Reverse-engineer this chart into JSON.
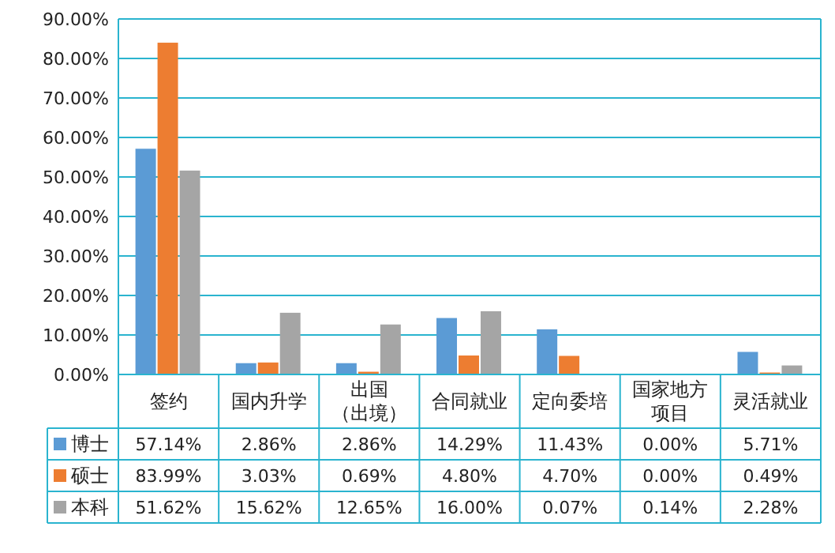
{
  "chart_data": {
    "type": "bar",
    "categories": [
      "签约",
      "国内升学",
      "出国（出境）",
      "合同就业",
      "定向委培",
      "国家地方项目",
      "灵活就业"
    ],
    "series": [
      {
        "name": "博士",
        "color": "#5b9bd5",
        "values": [
          57.14,
          2.86,
          2.86,
          14.29,
          11.43,
          0,
          5.71
        ],
        "value_labels": [
          "57.14%",
          "2.86%",
          "2.86%",
          "14.29%",
          "11.43%",
          "0.00%",
          "5.71%"
        ]
      },
      {
        "name": "硕士",
        "color": "#ed7d31",
        "values": [
          83.99,
          3.03,
          0.69,
          4.8,
          4.7,
          0,
          0.49
        ],
        "value_labels": [
          "83.99%",
          "3.03%",
          "0.69%",
          "4.80%",
          "4.70%",
          "0.00%",
          "0.49%"
        ]
      },
      {
        "name": "本科",
        "color": "#a5a5a5",
        "values": [
          51.62,
          15.62,
          12.65,
          16,
          0.07,
          0.14,
          2.28
        ],
        "value_labels": [
          "51.62%",
          "15.62%",
          "12.65%",
          "16.00%",
          "0.07%",
          "0.14%",
          "2.28%"
        ]
      }
    ],
    "ylim": [
      0,
      90
    ],
    "yticks": [
      {
        "value": 0,
        "label": "0.00%"
      },
      {
        "value": 10,
        "label": "10.00%"
      },
      {
        "value": 20,
        "label": "20.00%"
      },
      {
        "value": 30,
        "label": "30.00%"
      },
      {
        "value": 40,
        "label": "40.00%"
      },
      {
        "value": 50,
        "label": "50.00%"
      },
      {
        "value": 60,
        "label": "60.00%"
      },
      {
        "value": 70,
        "label": "70.00%"
      },
      {
        "value": 80,
        "label": "80.00%"
      },
      {
        "value": 90,
        "label": "90.00%"
      }
    ],
    "grid": "y",
    "legend": "bottom left"
  }
}
